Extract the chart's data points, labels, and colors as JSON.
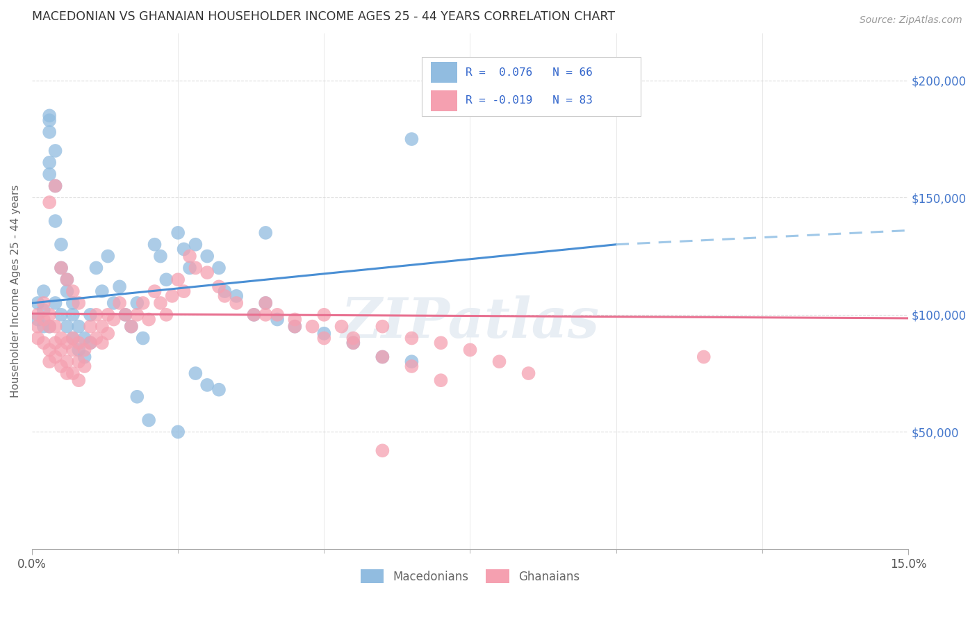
{
  "title": "MACEDONIAN VS GHANAIAN HOUSEHOLDER INCOME AGES 25 - 44 YEARS CORRELATION CHART",
  "source": "Source: ZipAtlas.com",
  "ylabel": "Householder Income Ages 25 - 44 years",
  "xlim": [
    0.0,
    0.15
  ],
  "ylim": [
    0,
    220000
  ],
  "ytick_vals": [
    0,
    50000,
    100000,
    150000,
    200000
  ],
  "ytick_labels": [
    "",
    "$50,000",
    "$100,000",
    "$150,000",
    "$200,000"
  ],
  "macedonian_color": "#91bce0",
  "ghanaian_color": "#f5a0b0",
  "trendline_mac_color": "#4a8fd4",
  "trendline_mac_dash_color": "#a0c8e8",
  "trendline_gha_color": "#e87090",
  "background_color": "#ffffff",
  "grid_color": "#cccccc",
  "watermark": "ZIPatlas",
  "watermark_color": "#e8eef4",
  "legend_mac_text": "R =  0.076   N = 66",
  "legend_gha_text": "R = -0.019   N = 83",
  "legend_text_color": "#3366cc",
  "bottom_legend_color": "#666666",
  "mac_scatter_x": [
    0.001,
    0.001,
    0.002,
    0.002,
    0.002,
    0.003,
    0.003,
    0.003,
    0.003,
    0.004,
    0.004,
    0.004,
    0.005,
    0.005,
    0.005,
    0.006,
    0.006,
    0.006,
    0.007,
    0.007,
    0.007,
    0.008,
    0.008,
    0.009,
    0.009,
    0.01,
    0.01,
    0.011,
    0.012,
    0.013,
    0.014,
    0.015,
    0.016,
    0.017,
    0.018,
    0.019,
    0.021,
    0.022,
    0.023,
    0.025,
    0.026,
    0.027,
    0.028,
    0.03,
    0.032,
    0.033,
    0.035,
    0.038,
    0.04,
    0.042,
    0.045,
    0.05,
    0.055,
    0.06,
    0.065,
    0.003,
    0.003,
    0.004,
    0.065,
    0.04,
    0.028,
    0.03,
    0.032,
    0.018,
    0.02,
    0.025
  ],
  "mac_scatter_y": [
    105000,
    98000,
    110000,
    95000,
    102000,
    185000,
    183000,
    178000,
    95000,
    170000,
    140000,
    105000,
    130000,
    120000,
    100000,
    115000,
    110000,
    95000,
    105000,
    100000,
    90000,
    95000,
    85000,
    90000,
    82000,
    100000,
    88000,
    120000,
    110000,
    125000,
    105000,
    112000,
    100000,
    95000,
    105000,
    90000,
    130000,
    125000,
    115000,
    135000,
    128000,
    120000,
    130000,
    125000,
    120000,
    110000,
    108000,
    100000,
    105000,
    98000,
    95000,
    92000,
    88000,
    82000,
    80000,
    165000,
    160000,
    155000,
    175000,
    135000,
    75000,
    70000,
    68000,
    65000,
    55000,
    50000
  ],
  "gha_scatter_x": [
    0.001,
    0.001,
    0.001,
    0.002,
    0.002,
    0.002,
    0.003,
    0.003,
    0.003,
    0.003,
    0.004,
    0.004,
    0.004,
    0.005,
    0.005,
    0.005,
    0.006,
    0.006,
    0.006,
    0.007,
    0.007,
    0.007,
    0.008,
    0.008,
    0.008,
    0.009,
    0.009,
    0.01,
    0.01,
    0.011,
    0.011,
    0.012,
    0.012,
    0.013,
    0.013,
    0.014,
    0.015,
    0.016,
    0.017,
    0.018,
    0.019,
    0.02,
    0.021,
    0.022,
    0.023,
    0.024,
    0.025,
    0.026,
    0.027,
    0.028,
    0.03,
    0.032,
    0.033,
    0.035,
    0.038,
    0.04,
    0.042,
    0.045,
    0.048,
    0.05,
    0.053,
    0.055,
    0.06,
    0.065,
    0.07,
    0.075,
    0.08,
    0.085,
    0.003,
    0.004,
    0.005,
    0.006,
    0.007,
    0.008,
    0.115,
    0.04,
    0.045,
    0.05,
    0.055,
    0.06,
    0.065,
    0.07,
    0.06
  ],
  "gha_scatter_y": [
    100000,
    95000,
    90000,
    105000,
    98000,
    88000,
    100000,
    95000,
    85000,
    80000,
    95000,
    88000,
    82000,
    90000,
    85000,
    78000,
    88000,
    80000,
    75000,
    90000,
    85000,
    75000,
    88000,
    80000,
    72000,
    85000,
    78000,
    95000,
    88000,
    100000,
    90000,
    95000,
    88000,
    100000,
    92000,
    98000,
    105000,
    100000,
    95000,
    100000,
    105000,
    98000,
    110000,
    105000,
    100000,
    108000,
    115000,
    110000,
    125000,
    120000,
    118000,
    112000,
    108000,
    105000,
    100000,
    105000,
    100000,
    98000,
    95000,
    100000,
    95000,
    90000,
    95000,
    90000,
    88000,
    85000,
    80000,
    75000,
    148000,
    155000,
    120000,
    115000,
    110000,
    105000,
    82000,
    100000,
    95000,
    90000,
    88000,
    82000,
    78000,
    72000,
    42000
  ]
}
